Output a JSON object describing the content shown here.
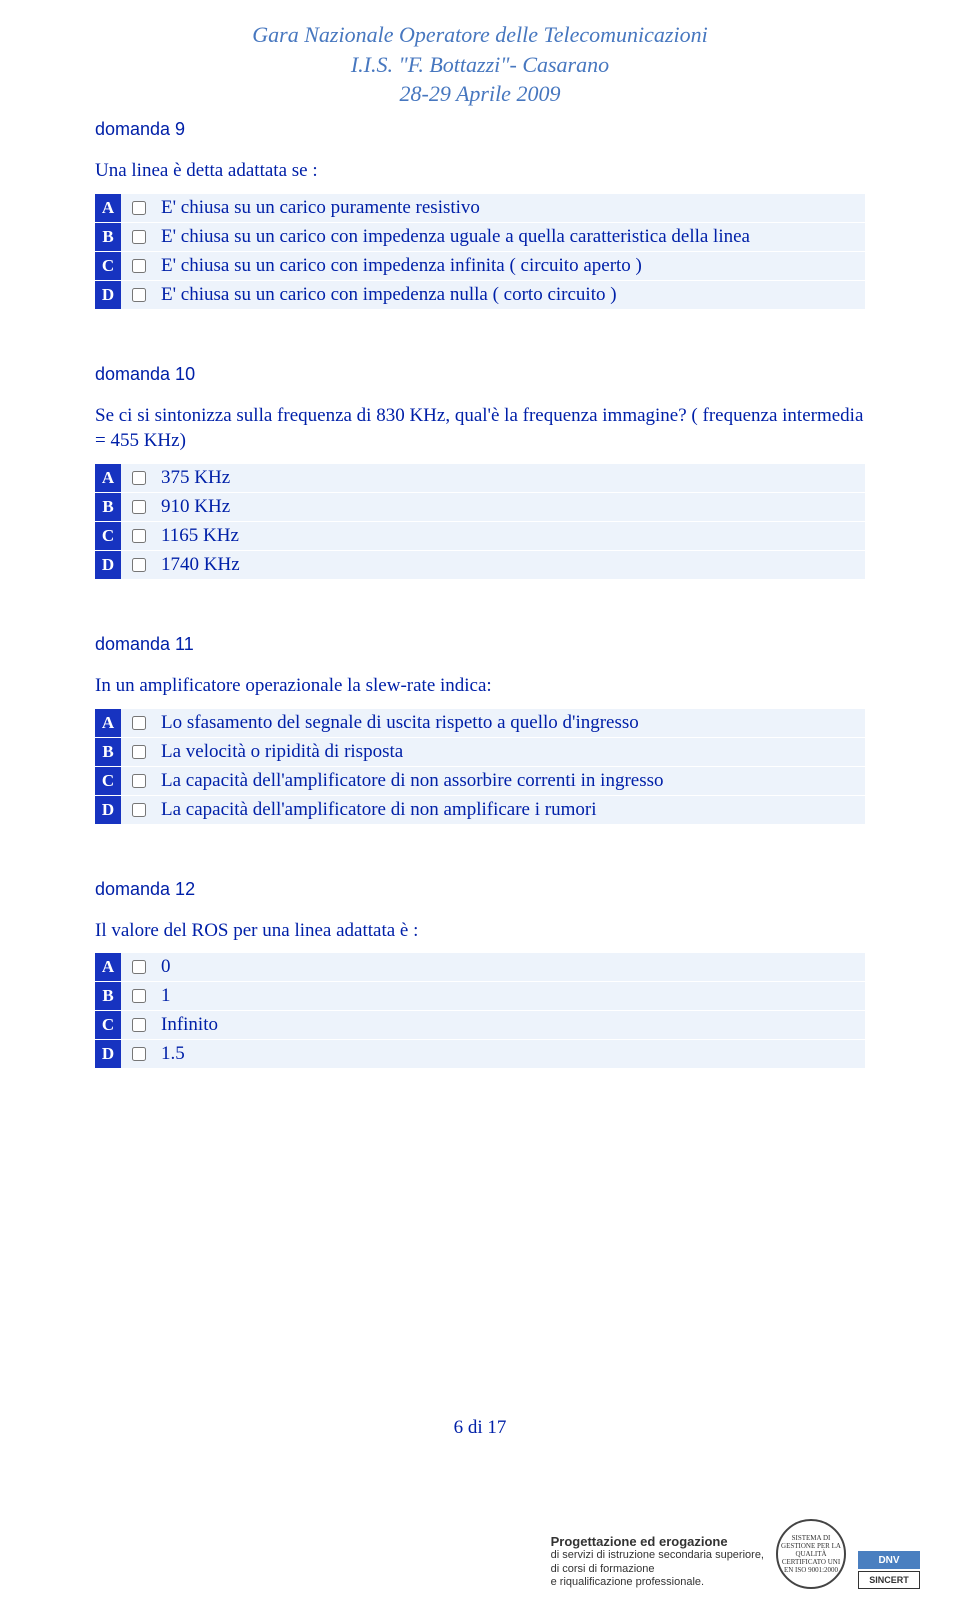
{
  "header": "Gara Nazionale  Operatore delle Telecomunicazioni\nI.I.S. \"F. Bottazzi\"- Casarano\n28-29 Aprile 2009",
  "questions": [
    {
      "title": "domanda 9",
      "text": "Una linea è detta adattata se :",
      "letters": [
        "A",
        "B",
        "C",
        "D"
      ],
      "options": [
        "E' chiusa su un carico puramente resistivo",
        "E' chiusa su un carico con impedenza uguale a quella caratteristica della linea",
        "E' chiusa su un carico con impedenza infinita ( circuito aperto )",
        "E' chiusa su un carico con impedenza nulla ( corto circuito )"
      ]
    },
    {
      "title": "domanda 10",
      "text": "Se ci si sintonizza sulla frequenza di 830 KHz, qual'è la frequenza immagine? ( frequenza intermedia = 455 KHz)",
      "letters": [
        "A",
        "B",
        "C",
        "D"
      ],
      "options": [
        "375 KHz",
        "910 KHz",
        "1165 KHz",
        "1740 KHz"
      ]
    },
    {
      "title": "domanda 11",
      "text": "In un amplificatore operazionale la slew-rate indica:",
      "letters": [
        "A",
        "B",
        "C",
        "D"
      ],
      "options": [
        "Lo sfasamento del segnale di uscita rispetto a quello d'ingresso",
        "La velocità o ripidità di risposta",
        "La capacità dell'amplificatore di non assorbire correnti in ingresso",
        "La capacità dell'amplificatore di non amplificare i rumori"
      ]
    },
    {
      "title": "domanda 12",
      "text": "Il valore del ROS per una linea adattata è :",
      "letters": [
        "A",
        "B",
        "C",
        "D"
      ],
      "options": [
        "0",
        "1",
        "Infinito",
        "1.5"
      ]
    }
  ],
  "page_number": "6 di 17",
  "footer": {
    "line1": "Progettazione ed erogazione",
    "line2": "di servizi di istruzione secondaria superiore,\ndi corsi di formazione\ne riqualificazione professionale.",
    "badge_text": "SISTEMA DI GESTIONE PER LA QUALITÀ CERTIFICATO UNI EN ISO 9001:2000",
    "cert1": "DNV",
    "cert2": "SINCERT"
  }
}
